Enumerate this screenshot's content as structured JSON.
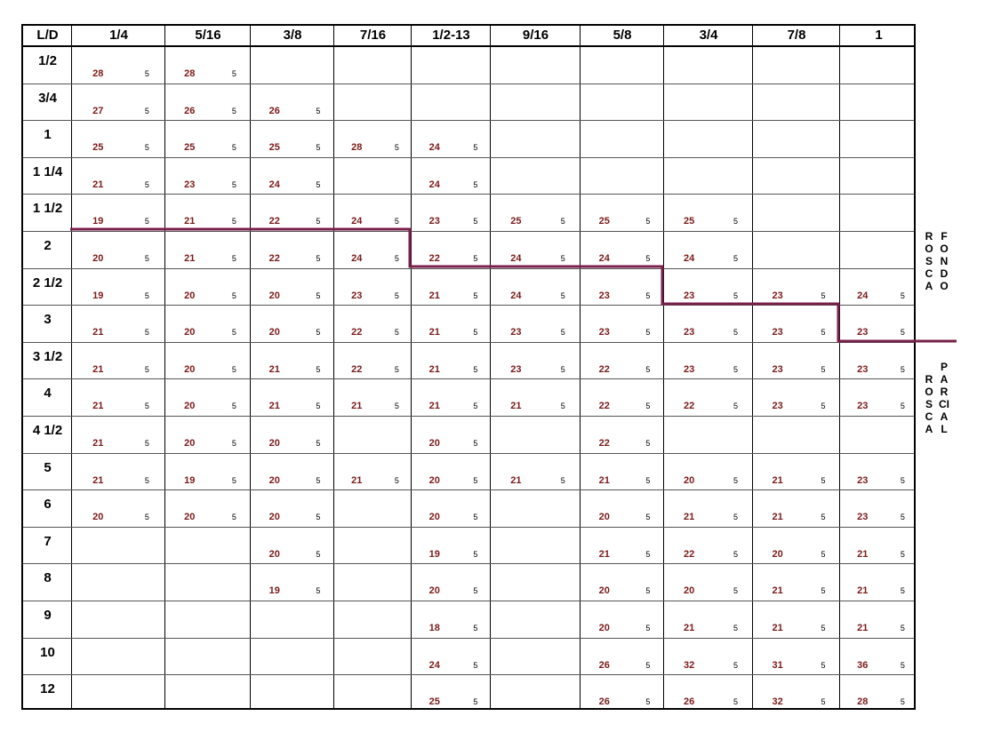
{
  "header": {
    "corner": "L/D",
    "columns": [
      "1/4",
      "5/16",
      "3/8",
      "7/16",
      "1/2-13",
      "9/16",
      "5/8",
      "3/4",
      "7/8",
      "1"
    ]
  },
  "rows": [
    {
      "label": "1/2",
      "cells": [
        [
          "28",
          "5"
        ],
        [
          "28",
          "5"
        ],
        null,
        null,
        null,
        null,
        null,
        null,
        null,
        null
      ]
    },
    {
      "label": "3/4",
      "cells": [
        [
          "27",
          "5"
        ],
        [
          "26",
          "5"
        ],
        [
          "26",
          "5"
        ],
        null,
        null,
        null,
        null,
        null,
        null,
        null
      ]
    },
    {
      "label": "1",
      "cells": [
        [
          "25",
          "5"
        ],
        [
          "25",
          "5"
        ],
        [
          "25",
          "5"
        ],
        [
          "28",
          "5"
        ],
        [
          "24",
          "5"
        ],
        null,
        null,
        null,
        null,
        null
      ]
    },
    {
      "label": "1 1/4",
      "cells": [
        [
          "21",
          "5"
        ],
        [
          "23",
          "5"
        ],
        [
          "24",
          "5"
        ],
        null,
        [
          "24",
          "5"
        ],
        null,
        null,
        null,
        null,
        null
      ]
    },
    {
      "label": "1 1/2",
      "cells": [
        [
          "19",
          "5"
        ],
        [
          "21",
          "5"
        ],
        [
          "22",
          "5"
        ],
        [
          "24",
          "5"
        ],
        [
          "23",
          "5"
        ],
        [
          "25",
          "5"
        ],
        [
          "25",
          "5"
        ],
        [
          "25",
          "5"
        ],
        null,
        null
      ]
    },
    {
      "label": "2",
      "cells": [
        [
          "20",
          "5"
        ],
        [
          "21",
          "5"
        ],
        [
          "22",
          "5"
        ],
        [
          "24",
          "5"
        ],
        [
          "22",
          "5"
        ],
        [
          "24",
          "5"
        ],
        [
          "24",
          "5"
        ],
        [
          "24",
          "5"
        ],
        null,
        null
      ]
    },
    {
      "label": "2 1/2",
      "cells": [
        [
          "19",
          "5"
        ],
        [
          "20",
          "5"
        ],
        [
          "20",
          "5"
        ],
        [
          "23",
          "5"
        ],
        [
          "21",
          "5"
        ],
        [
          "24",
          "5"
        ],
        [
          "23",
          "5"
        ],
        [
          "23",
          "5"
        ],
        [
          "23",
          "5"
        ],
        [
          "24",
          "5"
        ]
      ]
    },
    {
      "label": "3",
      "cells": [
        [
          "21",
          "5"
        ],
        [
          "20",
          "5"
        ],
        [
          "20",
          "5"
        ],
        [
          "22",
          "5"
        ],
        [
          "21",
          "5"
        ],
        [
          "23",
          "5"
        ],
        [
          "23",
          "5"
        ],
        [
          "23",
          "5"
        ],
        [
          "23",
          "5"
        ],
        [
          "23",
          "5"
        ]
      ]
    },
    {
      "label": "3 1/2",
      "cells": [
        [
          "21",
          "5"
        ],
        [
          "20",
          "5"
        ],
        [
          "21",
          "5"
        ],
        [
          "22",
          "5"
        ],
        [
          "21",
          "5"
        ],
        [
          "23",
          "5"
        ],
        [
          "22",
          "5"
        ],
        [
          "23",
          "5"
        ],
        [
          "23",
          "5"
        ],
        [
          "23",
          "5"
        ]
      ]
    },
    {
      "label": "4",
      "cells": [
        [
          "21",
          "5"
        ],
        [
          "20",
          "5"
        ],
        [
          "21",
          "5"
        ],
        [
          "21",
          "5"
        ],
        [
          "21",
          "5"
        ],
        [
          "21",
          "5"
        ],
        [
          "22",
          "5"
        ],
        [
          "22",
          "5"
        ],
        [
          "23",
          "5"
        ],
        [
          "23",
          "5"
        ]
      ]
    },
    {
      "label": "4 1/2",
      "cells": [
        [
          "21",
          "5"
        ],
        [
          "20",
          "5"
        ],
        [
          "20",
          "5"
        ],
        null,
        [
          "20",
          "5"
        ],
        null,
        [
          "22",
          "5"
        ],
        null,
        null,
        null
      ]
    },
    {
      "label": "5",
      "cells": [
        [
          "21",
          "5"
        ],
        [
          "19",
          "5"
        ],
        [
          "20",
          "5"
        ],
        [
          "21",
          "5"
        ],
        [
          "20",
          "5"
        ],
        [
          "21",
          "5"
        ],
        [
          "21",
          "5"
        ],
        [
          "20",
          "5"
        ],
        [
          "21",
          "5"
        ],
        [
          "23",
          "5"
        ]
      ]
    },
    {
      "label": "6",
      "cells": [
        [
          "20",
          "5"
        ],
        [
          "20",
          "5"
        ],
        [
          "20",
          "5"
        ],
        null,
        [
          "20",
          "5"
        ],
        null,
        [
          "20",
          "5"
        ],
        [
          "21",
          "5"
        ],
        [
          "21",
          "5"
        ],
        [
          "23",
          "5"
        ]
      ]
    },
    {
      "label": "7",
      "cells": [
        null,
        null,
        [
          "20",
          "5"
        ],
        null,
        [
          "19",
          "5"
        ],
        null,
        [
          "21",
          "5"
        ],
        [
          "22",
          "5"
        ],
        [
          "20",
          "5"
        ],
        [
          "21",
          "5"
        ]
      ]
    },
    {
      "label": "8",
      "cells": [
        null,
        null,
        [
          "19",
          "5"
        ],
        null,
        [
          "20",
          "5"
        ],
        null,
        [
          "20",
          "5"
        ],
        [
          "20",
          "5"
        ],
        [
          "21",
          "5"
        ],
        [
          "21",
          "5"
        ]
      ]
    },
    {
      "label": "9",
      "cells": [
        null,
        null,
        null,
        null,
        [
          "18",
          "5"
        ],
        null,
        [
          "20",
          "5"
        ],
        [
          "21",
          "5"
        ],
        [
          "21",
          "5"
        ],
        [
          "21",
          "5"
        ]
      ]
    },
    {
      "label": "10",
      "cells": [
        null,
        null,
        null,
        null,
        [
          "24",
          "5"
        ],
        null,
        [
          "26",
          "5"
        ],
        [
          "32",
          "5"
        ],
        [
          "31",
          "5"
        ],
        [
          "36",
          "5"
        ]
      ]
    },
    {
      "label": "12",
      "cells": [
        null,
        null,
        null,
        null,
        [
          "25",
          "5"
        ],
        null,
        [
          "26",
          "5"
        ],
        [
          "26",
          "5"
        ],
        [
          "32",
          "5"
        ],
        [
          "28",
          "5"
        ]
      ]
    }
  ],
  "side_labels": {
    "rosca_top": "ROSCA",
    "fondo": "FONDO",
    "rosca_bottom": "ROSCA",
    "parcial": "PARCIAL"
  },
  "colors": {
    "stair_line": "#7a1f4a",
    "value_text": "#7a1a1a"
  }
}
